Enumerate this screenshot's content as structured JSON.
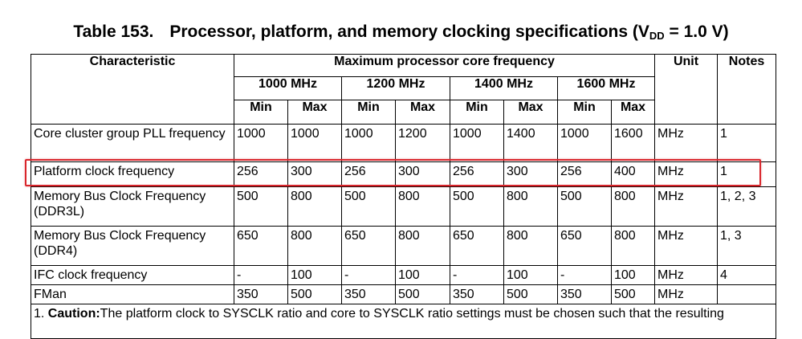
{
  "caption": {
    "number": "Table 153.",
    "title_main": "Processor, platform, and memory clocking specifications (V",
    "title_sub": "DD",
    "title_end": " = 1.0 V)"
  },
  "headers": {
    "characteristic": "Characteristic",
    "max_core_freq": "Maximum processor core frequency",
    "unit": "Unit",
    "notes": "Notes",
    "frequencies": [
      "1000 MHz",
      "1200 MHz",
      "1400 MHz",
      "1600 MHz"
    ],
    "min": "Min",
    "max": "Max"
  },
  "rows": [
    {
      "label": "Core cluster group PLL frequency",
      "values": [
        "1000",
        "1000",
        "1000",
        "1200",
        "1000",
        "1400",
        "1000",
        "1600"
      ],
      "unit": "MHz",
      "notes": "1"
    },
    {
      "label": "Platform clock frequency",
      "values": [
        "256",
        "300",
        "256",
        "300",
        "256",
        "300",
        "256",
        "400"
      ],
      "unit": "MHz",
      "notes": "1"
    },
    {
      "label": "Memory Bus Clock Frequency (DDR3L)",
      "values": [
        "500",
        "800",
        "500",
        "800",
        "500",
        "800",
        "500",
        "800"
      ],
      "unit": "MHz",
      "notes": "1, 2, 3"
    },
    {
      "label": "Memory Bus Clock Frequency (DDR4)",
      "values": [
        "650",
        "800",
        "650",
        "800",
        "650",
        "800",
        "650",
        "800"
      ],
      "unit": "MHz",
      "notes": "1, 3"
    },
    {
      "label": "IFC clock frequency",
      "values": [
        "-",
        "100",
        "-",
        "100",
        "-",
        "100",
        "-",
        "100"
      ],
      "unit": "MHz",
      "notes": "4"
    },
    {
      "label": "FMan",
      "values": [
        "350",
        "500",
        "350",
        "500",
        "350",
        "500",
        "350",
        "500"
      ],
      "unit": "MHz",
      "notes": ""
    }
  ],
  "footnote": {
    "prefix": "1. ",
    "bold": "Caution:",
    "text": "The platform clock to SYSCLK ratio and core to SYSCLK ratio settings must be chosen such that the resulting"
  }
}
